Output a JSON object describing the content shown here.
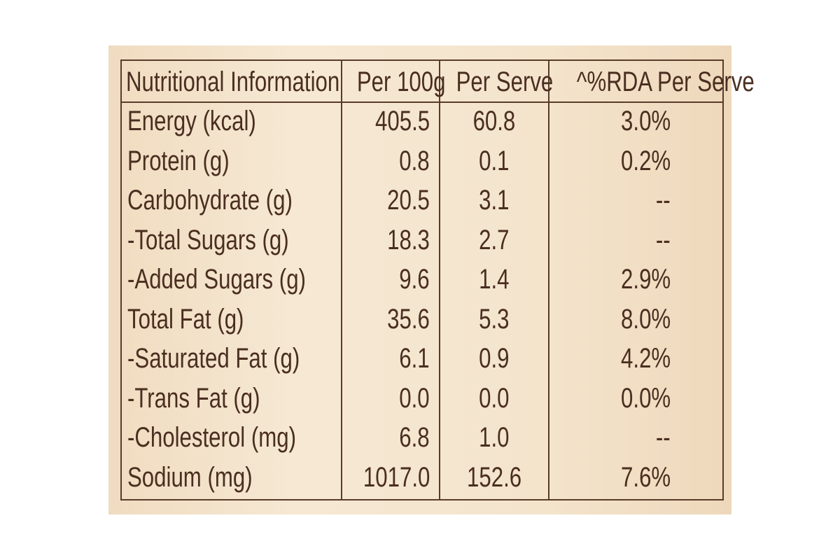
{
  "table": {
    "header": [
      "Nutritional Information",
      "Per 100g",
      "Per Serve",
      "^%RDA Per Serve"
    ],
    "rows": [
      [
        "Energy (kcal)",
        "405.5",
        "60.8",
        "3.0%"
      ],
      [
        "Protein (g)",
        "0.8",
        "0.1",
        "0.2%"
      ],
      [
        "Carbohydrate (g)",
        "20.5",
        "3.1",
        "--"
      ],
      [
        "-Total Sugars (g)",
        "18.3",
        "2.7",
        "--"
      ],
      [
        "-Added Sugars (g)",
        "9.6",
        "1.4",
        "2.9%"
      ],
      [
        "Total Fat (g)",
        "35.6",
        "5.3",
        "8.0%"
      ],
      [
        "-Saturated Fat (g)",
        "6.1",
        "0.9",
        "4.2%"
      ],
      [
        "-Trans Fat (g)",
        "0.0",
        "0.0",
        "0.0%"
      ],
      [
        "-Cholesterol (mg)",
        "6.8",
        "1.0",
        "--"
      ],
      [
        "Sodium (mg)",
        "1017.0",
        "152.6",
        "7.6%"
      ]
    ]
  }
}
